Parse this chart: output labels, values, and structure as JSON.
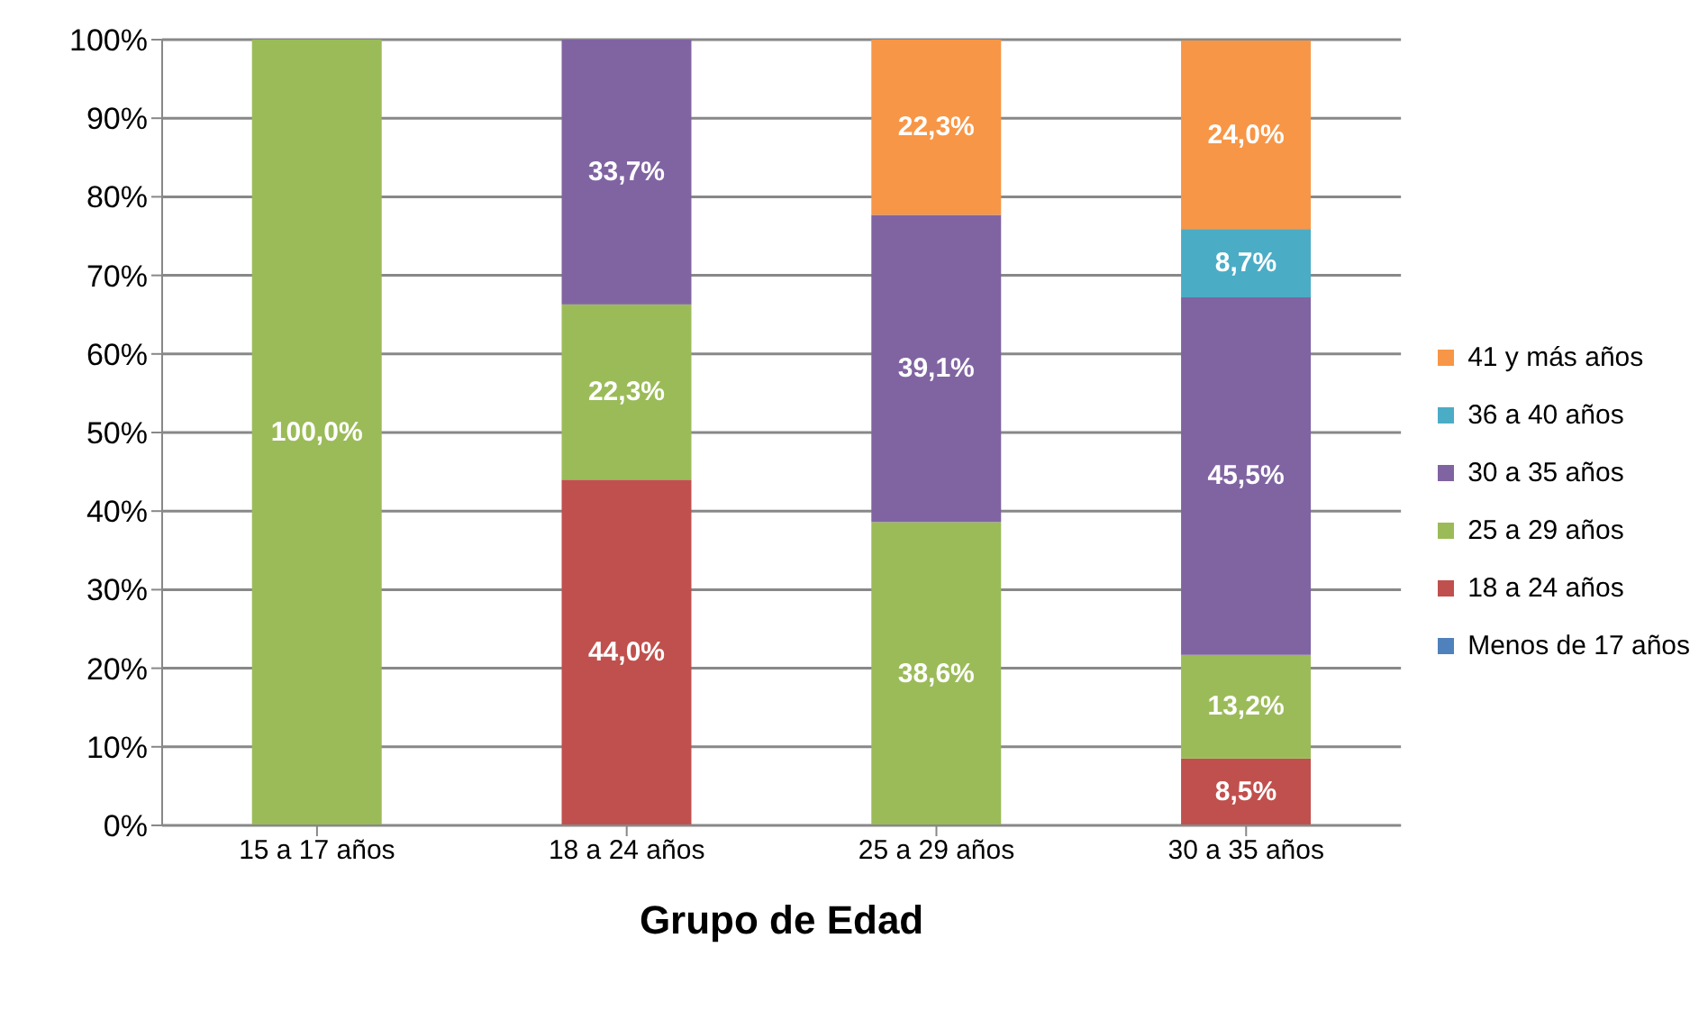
{
  "chart_data": {
    "type": "bar",
    "stacked": true,
    "xlabel": "Grupo de Edad",
    "categories": [
      "15 a 17 años",
      "18 a 24 años",
      "25 a 29 años",
      "30 a 35 años"
    ],
    "series": [
      {
        "name": "Menos de 17 años",
        "color": "#4f81bd",
        "values": [
          0,
          0,
          0,
          0
        ],
        "value_labels": [
          null,
          null,
          null,
          null
        ]
      },
      {
        "name": "18 a 24 años",
        "color": "#c0504d",
        "values": [
          0,
          44.0,
          0,
          8.5
        ],
        "value_labels": [
          null,
          "44,0%",
          null,
          "8,5%"
        ]
      },
      {
        "name": "25 a 29 años",
        "color": "#9bbb59",
        "values": [
          100,
          22.3,
          38.6,
          13.2
        ],
        "value_labels": [
          "100,0%",
          "22,3%",
          "38,6%",
          "13,2%"
        ]
      },
      {
        "name": "30 a 35 años",
        "color": "#8064a2",
        "values": [
          0,
          33.7,
          39.1,
          45.5
        ],
        "value_labels": [
          null,
          "33,7%",
          "39,1%",
          "45,5%"
        ]
      },
      {
        "name": "36 a 40 años",
        "color": "#4bacc6",
        "values": [
          0,
          0,
          0,
          8.7
        ],
        "value_labels": [
          null,
          null,
          null,
          "8,7%"
        ]
      },
      {
        "name": "41 y más años",
        "color": "#f79646",
        "values": [
          0,
          0,
          22.3,
          24.0
        ],
        "value_labels": [
          null,
          null,
          "22,3%",
          "24,0%"
        ]
      }
    ],
    "ylim": [
      0,
      100
    ],
    "yticks": [
      {
        "value": 0,
        "label": "0%"
      },
      {
        "value": 10,
        "label": "10%"
      },
      {
        "value": 20,
        "label": "20%"
      },
      {
        "value": 30,
        "label": "30%"
      },
      {
        "value": 40,
        "label": "40%"
      },
      {
        "value": 50,
        "label": "50%"
      },
      {
        "value": 60,
        "label": "60%"
      },
      {
        "value": 70,
        "label": "70%"
      },
      {
        "value": 80,
        "label": "80%"
      },
      {
        "value": 90,
        "label": "90%"
      },
      {
        "value": 100,
        "label": "100%"
      }
    ],
    "grid": "y",
    "legend": "right"
  }
}
